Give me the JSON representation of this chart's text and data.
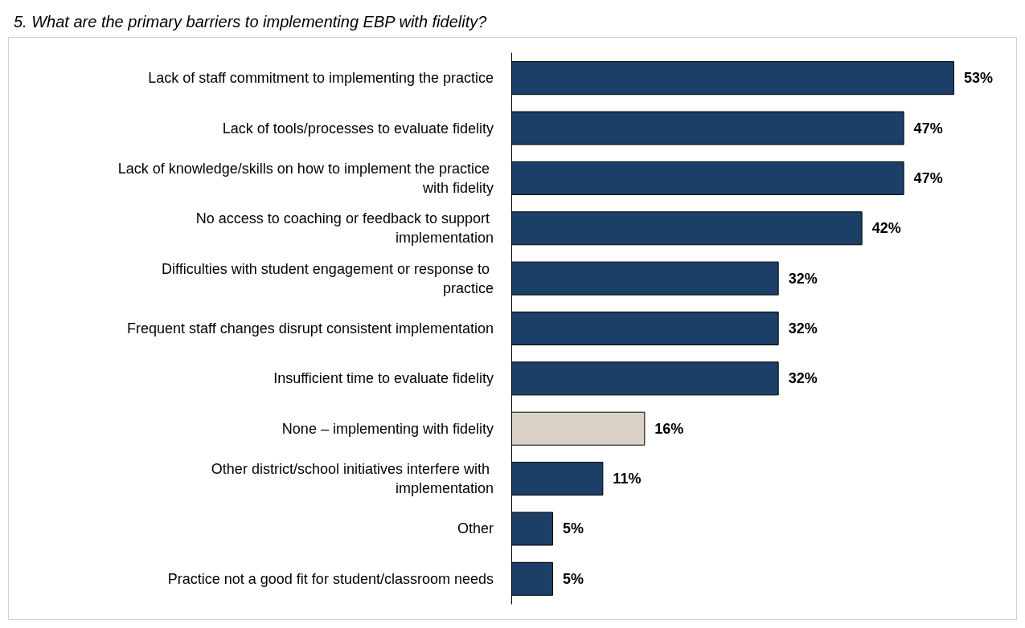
{
  "chart_data": {
    "type": "bar",
    "orientation": "horizontal",
    "title": "5. What are the primary barriers to implementing EBP with fidelity?",
    "categories": [
      "Lack of staff commitment to implementing the practice",
      "Lack of tools/processes to evaluate fidelity",
      "Lack of knowledge/skills on how to implement the practice with fidelity",
      "No access to coaching or feedback to support implementation",
      "Difficulties with student engagement or response to practice",
      "Frequent staff changes disrupt consistent implementation",
      "Insufficient time to evaluate fidelity",
      "None – implementing with fidelity",
      "Other district/school initiatives interfere with implementation",
      "Other",
      "Practice not a good fit for student/classroom needs"
    ],
    "values": [
      53,
      47,
      47,
      42,
      32,
      32,
      32,
      16,
      11,
      5,
      5
    ],
    "colors": [
      "#1b3f66",
      "#1b3f66",
      "#1b3f66",
      "#1b3f66",
      "#1b3f66",
      "#1b3f66",
      "#1b3f66",
      "#d9d0c7",
      "#1b3f66",
      "#1b3f66",
      "#1b3f66"
    ],
    "value_labels": [
      "53%",
      "47%",
      "47%",
      "42%",
      "32%",
      "32%",
      "32%",
      "16%",
      "11%",
      "5%",
      "5%"
    ]
  }
}
